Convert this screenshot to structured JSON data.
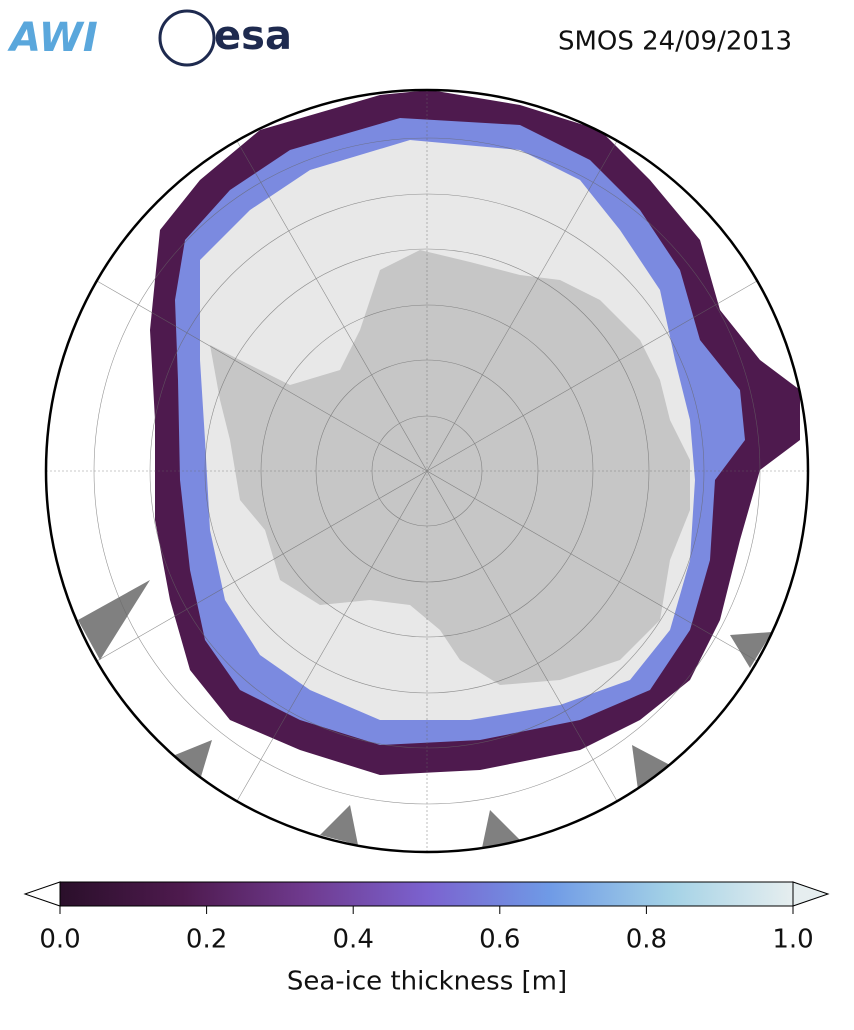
{
  "header": {
    "logos": [
      "AWI",
      "esa"
    ],
    "title": "SMOS 24/09/2013"
  },
  "colorbar": {
    "label": "Sea-ice thickness [m]",
    "lim": [
      0,
      1
    ],
    "ticks": [
      {
        "value": 0,
        "label": "0.0"
      },
      {
        "value": 0.2,
        "label": "0.2"
      },
      {
        "value": 0.4,
        "label": "0.4"
      },
      {
        "value": 0.6,
        "label": "0.6"
      },
      {
        "value": 0.8,
        "label": "0.8"
      },
      {
        "value": 1,
        "label": "1.0"
      }
    ],
    "colors": [
      "#2a0f2a",
      "#4e1a4e",
      "#6f3a8e",
      "#7b62cf",
      "#6f9ae6",
      "#a4d2e6",
      "#e6eeef"
    ]
  }
}
